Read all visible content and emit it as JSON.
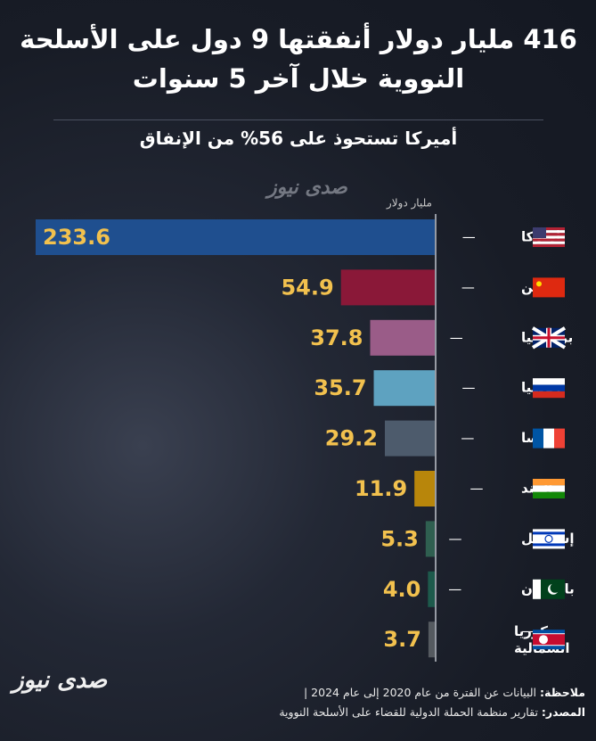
{
  "chart_data": {
    "type": "barh",
    "title": "416 مليار دولار أنفقتها 9 دول على الأسلحة النووية خلال آخر 5 سنوات",
    "subtitle": "أميركا تستحوذ على 56% من الإنفاق",
    "unit_label": "مليار دولار",
    "categories": [
      "أميركا",
      "الصين",
      "بريطانيا",
      "روسيا",
      "فرنسا",
      "الهند",
      "إسرائيل",
      "باكستان",
      "كوريا الشمالية"
    ],
    "values": [
      233.6,
      54.9,
      37.8,
      35.7,
      29.2,
      11.9,
      5.3,
      4.0,
      3.7
    ],
    "value_labels": [
      "233.6",
      "54.9",
      "37.8",
      "35.7",
      "29.2",
      "11.9",
      "5.3",
      "4.0",
      "3.7"
    ],
    "colors": [
      "#1f4f8f",
      "#8a1838",
      "#9a5c88",
      "#5ea2c0",
      "#4d5b6c",
      "#b8860b",
      "#2f5f50",
      "#1d5a4c",
      "#555a60"
    ],
    "xlim": [
      0,
      233.6
    ],
    "note_label": "ملاحظة:",
    "note": "البيانات عن الفترة من عام 2020 إلى عام 2024 |",
    "source_label": "المصدر:",
    "source": "تقارير منظمة الحملة الدولية للقضاء على الأسلحة النووية",
    "logo": "صدى نيوز"
  }
}
